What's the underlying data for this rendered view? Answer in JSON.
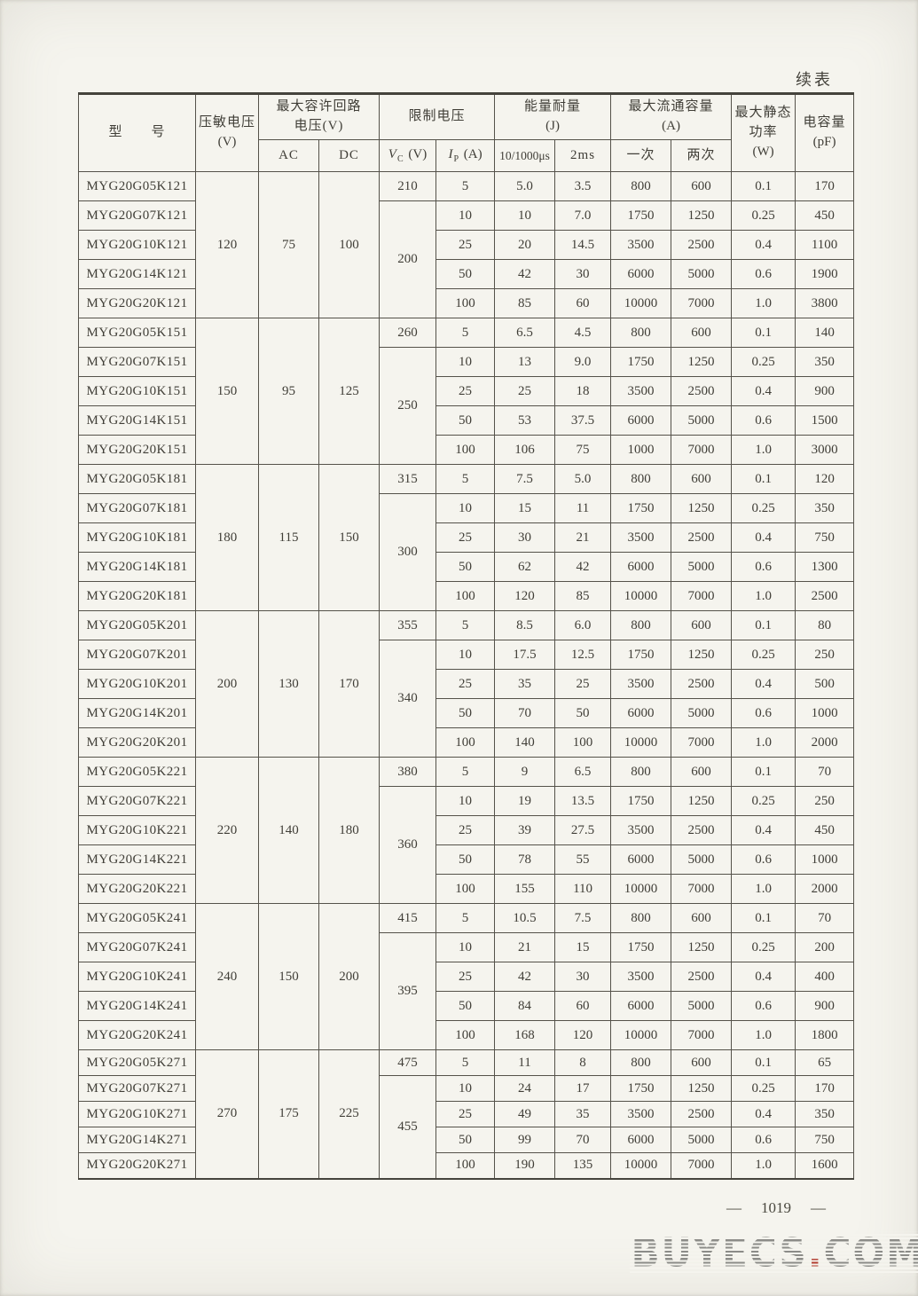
{
  "page": {
    "continued_label": "续表",
    "page_number": "1019",
    "page_number_dash_left": "—",
    "page_number_dash_right": "—",
    "watermark_text": "BUYECS",
    "watermark_dot": ".",
    "watermark_suffix": "COM",
    "paper_color": "#f5f4ee",
    "line_color": "#55524a",
    "watermark_color": "#8c8c88",
    "watermark_dot_color": "#b23c30"
  },
  "table": {
    "header": {
      "model_label": "型　　号",
      "varistor_voltage_l1": "压敏电压",
      "varistor_voltage_l2": "(V)",
      "circuit_voltage_l1": "最大容许回路",
      "circuit_voltage_l2": "电压(V)",
      "ac_label": "AC",
      "dc_label": "DC",
      "limit_voltage_label": "限制电压",
      "vc_sym": "V",
      "vc_sub": "C",
      "vc_unit": "(V)",
      "ip_sym": "I",
      "ip_sub": "P",
      "ip_unit": "(A)",
      "energy_l1": "能量耐量",
      "energy_l2": "(J)",
      "energy_sub1": "10/1000μs",
      "energy_sub2": "2ms",
      "surge_l1": "最大流通容量",
      "surge_l2": "(A)",
      "surge_sub1": "一次",
      "surge_sub2": "两次",
      "power_l1": "最大静态",
      "power_l2": "功率",
      "power_l3": "(W)",
      "cap_l1": "电容量",
      "cap_l2": "(pF)"
    },
    "groups": [
      {
        "varistor_voltage": "120",
        "ac": "75",
        "dc": "100",
        "vc_first": "210",
        "vc_rest": "200",
        "rows": [
          {
            "model": "MYG20G05K121",
            "ip": "5",
            "e1": "5.0",
            "e2": "3.5",
            "once": "800",
            "twice": "600",
            "power": "0.1",
            "cap": "170"
          },
          {
            "model": "MYG20G07K121",
            "ip": "10",
            "e1": "10",
            "e2": "7.0",
            "once": "1750",
            "twice": "1250",
            "power": "0.25",
            "cap": "450"
          },
          {
            "model": "MYG20G10K121",
            "ip": "25",
            "e1": "20",
            "e2": "14.5",
            "once": "3500",
            "twice": "2500",
            "power": "0.4",
            "cap": "1100"
          },
          {
            "model": "MYG20G14K121",
            "ip": "50",
            "e1": "42",
            "e2": "30",
            "once": "6000",
            "twice": "5000",
            "power": "0.6",
            "cap": "1900"
          },
          {
            "model": "MYG20G20K121",
            "ip": "100",
            "e1": "85",
            "e2": "60",
            "once": "10000",
            "twice": "7000",
            "power": "1.0",
            "cap": "3800"
          }
        ]
      },
      {
        "varistor_voltage": "150",
        "ac": "95",
        "dc": "125",
        "vc_first": "260",
        "vc_rest": "250",
        "rows": [
          {
            "model": "MYG20G05K151",
            "ip": "5",
            "e1": "6.5",
            "e2": "4.5",
            "once": "800",
            "twice": "600",
            "power": "0.1",
            "cap": "140"
          },
          {
            "model": "MYG20G07K151",
            "ip": "10",
            "e1": "13",
            "e2": "9.0",
            "once": "1750",
            "twice": "1250",
            "power": "0.25",
            "cap": "350"
          },
          {
            "model": "MYG20G10K151",
            "ip": "25",
            "e1": "25",
            "e2": "18",
            "once": "3500",
            "twice": "2500",
            "power": "0.4",
            "cap": "900"
          },
          {
            "model": "MYG20G14K151",
            "ip": "50",
            "e1": "53",
            "e2": "37.5",
            "once": "6000",
            "twice": "5000",
            "power": "0.6",
            "cap": "1500"
          },
          {
            "model": "MYG20G20K151",
            "ip": "100",
            "e1": "106",
            "e2": "75",
            "once": "1000",
            "twice": "7000",
            "power": "1.0",
            "cap": "3000"
          }
        ]
      },
      {
        "varistor_voltage": "180",
        "ac": "115",
        "dc": "150",
        "vc_first": "315",
        "vc_rest": "300",
        "rows": [
          {
            "model": "MYG20G05K181",
            "ip": "5",
            "e1": "7.5",
            "e2": "5.0",
            "once": "800",
            "twice": "600",
            "power": "0.1",
            "cap": "120"
          },
          {
            "model": "MYG20G07K181",
            "ip": "10",
            "e1": "15",
            "e2": "11",
            "once": "1750",
            "twice": "1250",
            "power": "0.25",
            "cap": "350"
          },
          {
            "model": "MYG20G10K181",
            "ip": "25",
            "e1": "30",
            "e2": "21",
            "once": "3500",
            "twice": "2500",
            "power": "0.4",
            "cap": "750"
          },
          {
            "model": "MYG20G14K181",
            "ip": "50",
            "e1": "62",
            "e2": "42",
            "once": "6000",
            "twice": "5000",
            "power": "0.6",
            "cap": "1300"
          },
          {
            "model": "MYG20G20K181",
            "ip": "100",
            "e1": "120",
            "e2": "85",
            "once": "10000",
            "twice": "7000",
            "power": "1.0",
            "cap": "2500"
          }
        ]
      },
      {
        "varistor_voltage": "200",
        "ac": "130",
        "dc": "170",
        "vc_first": "355",
        "vc_rest": "340",
        "rows": [
          {
            "model": "MYG20G05K201",
            "ip": "5",
            "e1": "8.5",
            "e2": "6.0",
            "once": "800",
            "twice": "600",
            "power": "0.1",
            "cap": "80"
          },
          {
            "model": "MYG20G07K201",
            "ip": "10",
            "e1": "17.5",
            "e2": "12.5",
            "once": "1750",
            "twice": "1250",
            "power": "0.25",
            "cap": "250"
          },
          {
            "model": "MYG20G10K201",
            "ip": "25",
            "e1": "35",
            "e2": "25",
            "once": "3500",
            "twice": "2500",
            "power": "0.4",
            "cap": "500"
          },
          {
            "model": "MYG20G14K201",
            "ip": "50",
            "e1": "70",
            "e2": "50",
            "once": "6000",
            "twice": "5000",
            "power": "0.6",
            "cap": "1000"
          },
          {
            "model": "MYG20G20K201",
            "ip": "100",
            "e1": "140",
            "e2": "100",
            "once": "10000",
            "twice": "7000",
            "power": "1.0",
            "cap": "2000"
          }
        ]
      },
      {
        "varistor_voltage": "220",
        "ac": "140",
        "dc": "180",
        "vc_first": "380",
        "vc_rest": "360",
        "rows": [
          {
            "model": "MYG20G05K221",
            "ip": "5",
            "e1": "9",
            "e2": "6.5",
            "once": "800",
            "twice": "600",
            "power": "0.1",
            "cap": "70"
          },
          {
            "model": "MYG20G07K221",
            "ip": "10",
            "e1": "19",
            "e2": "13.5",
            "once": "1750",
            "twice": "1250",
            "power": "0.25",
            "cap": "250"
          },
          {
            "model": "MYG20G10K221",
            "ip": "25",
            "e1": "39",
            "e2": "27.5",
            "once": "3500",
            "twice": "2500",
            "power": "0.4",
            "cap": "450"
          },
          {
            "model": "MYG20G14K221",
            "ip": "50",
            "e1": "78",
            "e2": "55",
            "once": "6000",
            "twice": "5000",
            "power": "0.6",
            "cap": "1000"
          },
          {
            "model": "MYG20G20K221",
            "ip": "100",
            "e1": "155",
            "e2": "110",
            "once": "10000",
            "twice": "7000",
            "power": "1.0",
            "cap": "2000"
          }
        ]
      },
      {
        "varistor_voltage": "240",
        "ac": "150",
        "dc": "200",
        "vc_first": "415",
        "vc_rest": "395",
        "rows": [
          {
            "model": "MYG20G05K241",
            "ip": "5",
            "e1": "10.5",
            "e2": "7.5",
            "once": "800",
            "twice": "600",
            "power": "0.1",
            "cap": "70"
          },
          {
            "model": "MYG20G07K241",
            "ip": "10",
            "e1": "21",
            "e2": "15",
            "once": "1750",
            "twice": "1250",
            "power": "0.25",
            "cap": "200"
          },
          {
            "model": "MYG20G10K241",
            "ip": "25",
            "e1": "42",
            "e2": "30",
            "once": "3500",
            "twice": "2500",
            "power": "0.4",
            "cap": "400"
          },
          {
            "model": "MYG20G14K241",
            "ip": "50",
            "e1": "84",
            "e2": "60",
            "once": "6000",
            "twice": "5000",
            "power": "0.6",
            "cap": "900"
          },
          {
            "model": "MYG20G20K241",
            "ip": "100",
            "e1": "168",
            "e2": "120",
            "once": "10000",
            "twice": "7000",
            "power": "1.0",
            "cap": "1800"
          }
        ]
      },
      {
        "varistor_voltage": "270",
        "ac": "175",
        "dc": "225",
        "vc_first": "475",
        "vc_rest": "455",
        "rows": [
          {
            "model": "MYG20G05K271",
            "ip": "5",
            "e1": "11",
            "e2": "8",
            "once": "800",
            "twice": "600",
            "power": "0.1",
            "cap": "65"
          },
          {
            "model": "MYG20G07K271",
            "ip": "10",
            "e1": "24",
            "e2": "17",
            "once": "1750",
            "twice": "1250",
            "power": "0.25",
            "cap": "170"
          },
          {
            "model": "MYG20G10K271",
            "ip": "25",
            "e1": "49",
            "e2": "35",
            "once": "3500",
            "twice": "2500",
            "power": "0.4",
            "cap": "350"
          },
          {
            "model": "MYG20G14K271",
            "ip": "50",
            "e1": "99",
            "e2": "70",
            "once": "6000",
            "twice": "5000",
            "power": "0.6",
            "cap": "750"
          },
          {
            "model": "MYG20G20K271",
            "ip": "100",
            "e1": "190",
            "e2": "135",
            "once": "10000",
            "twice": "7000",
            "power": "1.0",
            "cap": "1600"
          }
        ]
      }
    ]
  }
}
